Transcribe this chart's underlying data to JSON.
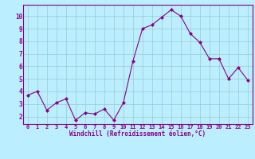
{
  "x": [
    0,
    1,
    2,
    3,
    4,
    5,
    6,
    7,
    8,
    9,
    10,
    11,
    12,
    13,
    14,
    15,
    16,
    17,
    18,
    19,
    20,
    21,
    22,
    23
  ],
  "y": [
    3.7,
    4.0,
    2.5,
    3.1,
    3.4,
    1.7,
    2.3,
    2.2,
    2.6,
    1.7,
    3.1,
    6.4,
    9.0,
    9.3,
    9.9,
    10.5,
    10.0,
    8.6,
    7.9,
    6.6,
    6.6,
    5.0,
    5.9,
    4.9
  ],
  "line_color": "#880088",
  "marker": "D",
  "marker_size": 2.0,
  "bg_color": "#bbeeff",
  "grid_color": "#99cccc",
  "xlabel": "Windchill (Refroidissement éolien,°C)",
  "xlabel_color": "#880088",
  "tick_color": "#880088",
  "label_color": "#880088",
  "ylim": [
    1.4,
    10.9
  ],
  "xlim": [
    -0.5,
    23.5
  ],
  "yticks": [
    2,
    3,
    4,
    5,
    6,
    7,
    8,
    9,
    10
  ],
  "xticks": [
    0,
    1,
    2,
    3,
    4,
    5,
    6,
    7,
    8,
    9,
    10,
    11,
    12,
    13,
    14,
    15,
    16,
    17,
    18,
    19,
    20,
    21,
    22,
    23
  ],
  "figsize": [
    3.2,
    2.0
  ],
  "dpi": 100
}
